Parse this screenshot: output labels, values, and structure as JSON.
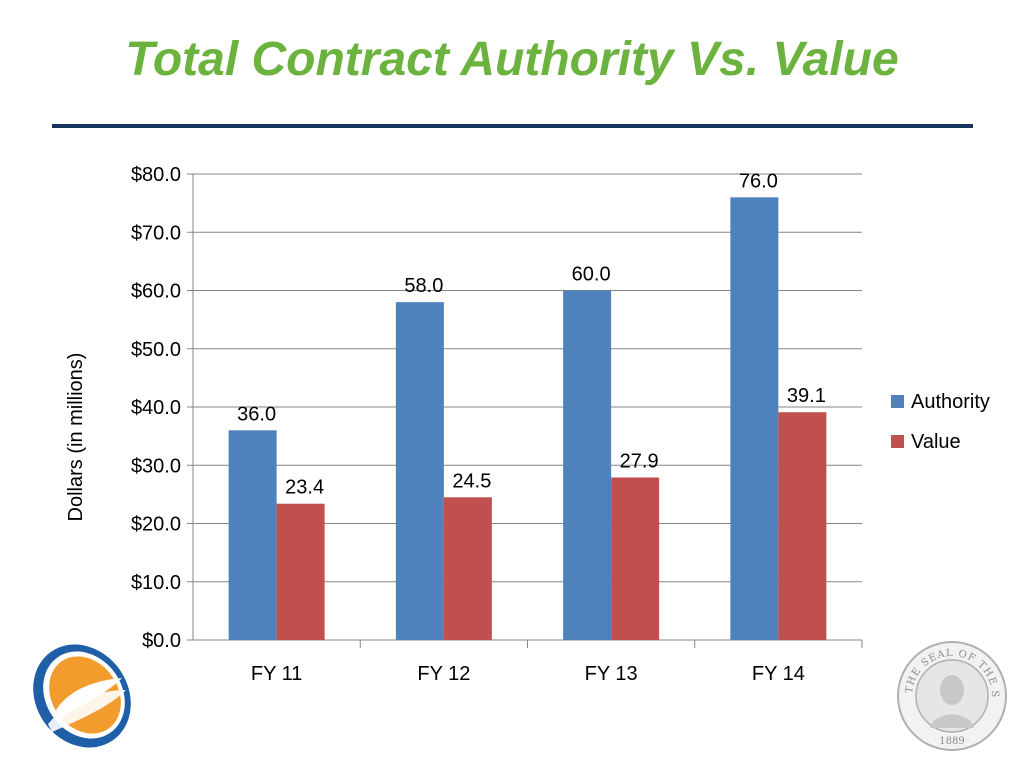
{
  "slide": {
    "title": "Total Contract Authority Vs. Value"
  },
  "colors": {
    "title": "#6bb33e",
    "rule": "#17365d",
    "authority": "#4f81bd",
    "value": "#c0504d"
  },
  "logo": {
    "name": "orange-blue-swoosh-logo"
  },
  "seal": {
    "name": "seal-of-the-state-of-washington",
    "text": "THE SEAL OF THE STATE OF WASHINGTON",
    "year": "1889"
  },
  "chart_data": {
    "type": "bar",
    "title": "",
    "xlabel": "",
    "ylabel": "Dollars (in millions)",
    "categories": [
      "FY 11",
      "FY 12",
      "FY 13",
      "FY 14"
    ],
    "ylim": [
      0,
      80
    ],
    "yticks": [
      0,
      10,
      20,
      30,
      40,
      50,
      60,
      70,
      80
    ],
    "ytick_labels": [
      "$0.0",
      "$10.0",
      "$20.0",
      "$30.0",
      "$40.0",
      "$50.0",
      "$60.0",
      "$70.0",
      "$80.0"
    ],
    "grid": true,
    "legend_position": "right",
    "series": [
      {
        "name": "Authority",
        "values": [
          36.0,
          58.0,
          60.0,
          76.0
        ],
        "labels": [
          "36.0",
          "58.0",
          "60.0",
          "76.0"
        ],
        "color": "#4f81bd"
      },
      {
        "name": "Value",
        "values": [
          23.4,
          24.5,
          27.9,
          39.1
        ],
        "labels": [
          "23.4",
          "24.5",
          "27.9",
          "39.1"
        ],
        "color": "#c0504d"
      }
    ]
  }
}
